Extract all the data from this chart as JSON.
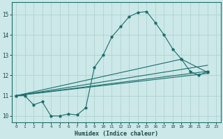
{
  "xlabel": "Humidex (Indice chaleur)",
  "ylabel": "",
  "bg_color": "#cce8e8",
  "grid_color": "#aacfcf",
  "line_color": "#1a6e6a",
  "xlim": [
    -0.5,
    23.5
  ],
  "ylim": [
    9.7,
    15.6
  ],
  "xticks": [
    0,
    1,
    2,
    3,
    4,
    5,
    6,
    7,
    8,
    9,
    10,
    11,
    12,
    13,
    14,
    15,
    16,
    17,
    18,
    19,
    20,
    21,
    22,
    23
  ],
  "yticks": [
    10,
    11,
    12,
    13,
    14,
    15
  ],
  "curve_x": [
    0,
    1,
    2,
    3,
    4,
    5,
    6,
    7,
    8,
    9,
    10,
    11,
    12,
    13,
    14,
    15,
    16,
    17,
    18,
    19,
    20,
    21,
    22
  ],
  "curve_y": [
    11.0,
    11.0,
    10.55,
    10.7,
    10.0,
    10.0,
    10.1,
    10.05,
    10.4,
    12.4,
    13.0,
    13.9,
    14.4,
    14.9,
    15.1,
    15.15,
    14.6,
    14.0,
    13.3,
    12.8,
    12.2,
    12.0,
    12.2
  ],
  "line1_x": [
    0,
    22
  ],
  "line1_y": [
    11.0,
    12.1
  ],
  "line2_x": [
    0,
    22
  ],
  "line2_y": [
    11.0,
    12.2
  ],
  "line3_x": [
    0,
    22
  ],
  "line3_y": [
    11.0,
    12.5
  ],
  "line4_x": [
    0,
    19,
    22
  ],
  "line4_y": [
    11.0,
    12.8,
    12.15
  ]
}
